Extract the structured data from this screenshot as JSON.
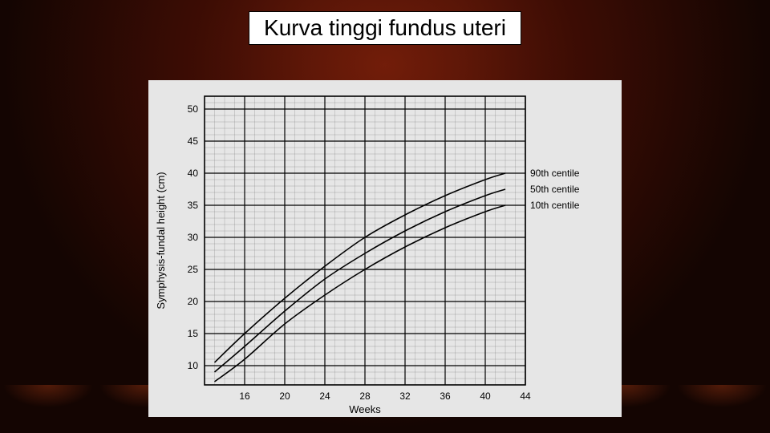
{
  "slide": {
    "title": "Kurva tinggi fundus uteri",
    "background_type": "theater-curtain",
    "accent_colors": [
      "#3a1205",
      "#5a1f08",
      "#1a0600"
    ]
  },
  "chart": {
    "type": "line",
    "background_color": "#e6e6e6",
    "plot_background": "#e6e6e6",
    "axis_color": "#000000",
    "major_grid_color": "#000000",
    "minor_grid_color": "#666666",
    "minor_grid_width": 0.4,
    "major_grid_width": 1.2,
    "line_color": "#000000",
    "line_width": 1.6,
    "x": {
      "label": "Weeks",
      "min": 12,
      "max": 44,
      "major_ticks": [
        16,
        20,
        24,
        28,
        32,
        36,
        40,
        44
      ],
      "minor_step": 1
    },
    "y": {
      "label": "Symphysis-fundal height (cm)",
      "min": 7,
      "max": 52,
      "major_ticks": [
        10,
        15,
        20,
        25,
        30,
        35,
        40,
        45,
        50
      ],
      "minor_step": 1
    },
    "series": [
      {
        "name": "90th centile",
        "label": "90th centile",
        "points": [
          [
            13,
            10.5
          ],
          [
            16,
            15
          ],
          [
            20,
            20.5
          ],
          [
            24,
            25.5
          ],
          [
            28,
            30
          ],
          [
            32,
            33.5
          ],
          [
            36,
            36.5
          ],
          [
            40,
            39
          ],
          [
            42,
            40
          ]
        ]
      },
      {
        "name": "50th centile",
        "label": "50th centile",
        "points": [
          [
            13,
            9
          ],
          [
            16,
            13
          ],
          [
            20,
            18.5
          ],
          [
            24,
            23.5
          ],
          [
            28,
            27.5
          ],
          [
            32,
            31
          ],
          [
            36,
            34
          ],
          [
            40,
            36.5
          ],
          [
            42,
            37.5
          ]
        ]
      },
      {
        "name": "10th centile",
        "label": "10th centile",
        "points": [
          [
            13,
            7.5
          ],
          [
            16,
            11
          ],
          [
            20,
            16.5
          ],
          [
            24,
            21
          ],
          [
            28,
            25
          ],
          [
            32,
            28.5
          ],
          [
            36,
            31.5
          ],
          [
            40,
            34
          ],
          [
            42,
            35
          ]
        ]
      }
    ],
    "series_label_positions": [
      {
        "series": "90th centile",
        "x": 44.5,
        "y": 40
      },
      {
        "series": "50th centile",
        "x": 44.5,
        "y": 37.5
      },
      {
        "series": "10th centile",
        "x": 44.5,
        "y": 35
      }
    ],
    "label_fontsize": 12,
    "title_fontsize": 28
  }
}
